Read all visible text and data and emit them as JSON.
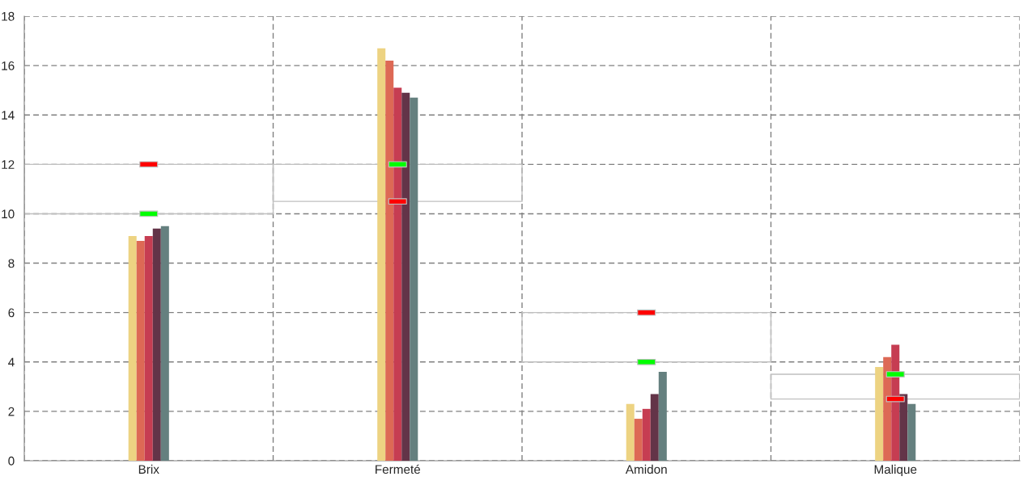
{
  "chart_data": {
    "type": "bar",
    "categories": [
      "Brix",
      "Fermeté",
      "Amidon",
      "Malique"
    ],
    "series": [
      {
        "color": "#edd382",
        "values": [
          9.1,
          16.7,
          2.3,
          3.8
        ]
      },
      {
        "color": "#dd6955",
        "values": [
          8.9,
          16.2,
          1.7,
          4.2
        ]
      },
      {
        "color": "#c63d52",
        "values": [
          9.1,
          15.1,
          2.1,
          4.7
        ]
      },
      {
        "color": "#633448",
        "values": [
          9.4,
          14.9,
          2.7,
          2.7
        ]
      },
      {
        "color": "#65807f",
        "values": [
          9.5,
          14.7,
          3.6,
          2.3
        ]
      },
      {
        "type": "bar",
        "color": "#c0c0c0",
        "base": [
          10,
          10.5,
          4,
          2.5
        ],
        "values": [
          2,
          1.5,
          2,
          1
        ]
      },
      {
        "type": "scatter",
        "color": "#00ff00",
        "x": [
          "Brix",
          "Fermeté",
          "Amidon",
          "Malique"
        ],
        "values": [
          10,
          12,
          4,
          3.5
        ]
      },
      {
        "type": "scatter",
        "color": "#ff0000",
        "x": [
          "Brix",
          "Fermeté",
          "Amidon",
          "Malique"
        ],
        "values": [
          12,
          10.5,
          6,
          2.5
        ]
      }
    ],
    "ylim": [
      0,
      18
    ],
    "yticks": [
      0,
      2,
      4,
      6,
      8,
      10,
      12,
      14,
      16,
      18
    ],
    "grid": true,
    "line_style": "dashed"
  }
}
